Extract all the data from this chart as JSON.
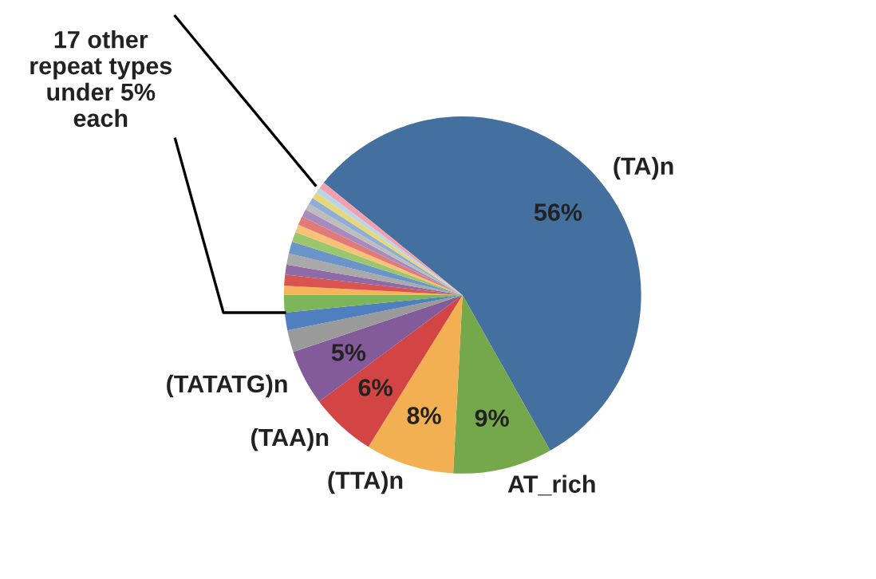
{
  "chart_data": {
    "type": "pie",
    "categories": [
      "(TA)n",
      "AT_rich",
      "(TTA)n",
      "(TAA)n",
      "(TATATG)n",
      null,
      null,
      null,
      null,
      null,
      null,
      null,
      null,
      null,
      null,
      null,
      null,
      null,
      null,
      null,
      null,
      null
    ],
    "values": [
      56,
      9,
      8,
      6,
      5,
      2.0,
      1.6,
      1.6,
      0.8,
      1.0,
      0.9,
      1.0,
      1.1,
      0.9,
      0.7,
      0.8,
      0.7,
      0.6,
      0.6,
      0.6,
      0.5,
      0.6
    ],
    "colors": [
      "#44709f",
      "#74a84a",
      "#f2b052",
      "#d34544",
      "#845b9a",
      "#9a9a9a",
      "#4f7fbf",
      "#7cb55a",
      "#f5b35a",
      "#d9534f",
      "#8e6aa6",
      "#a9a9a9",
      "#6b94c9",
      "#9cc66e",
      "#f7c275",
      "#e07b78",
      "#a88bbd",
      "#bdbdbd",
      "#8faed6",
      "#e8d77a",
      "#b7d7e8",
      "#f2a0b0"
    ],
    "value_labels": [
      "56%",
      "9%",
      "8%",
      "6%",
      "5%",
      null,
      null,
      null,
      null,
      null,
      null,
      null,
      null,
      null,
      null,
      null,
      null,
      null,
      null,
      null,
      null,
      null
    ],
    "annotations": [
      "17 other\nrepeat types\nunder 5%\neach"
    ],
    "legend": false
  }
}
